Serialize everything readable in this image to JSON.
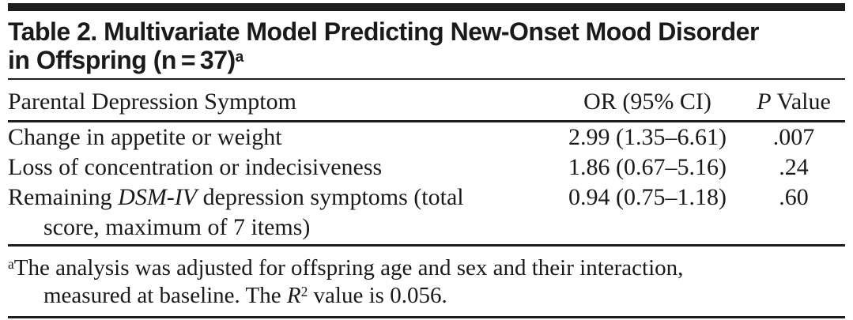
{
  "table": {
    "title": {
      "line1": "Table 2. Multivariate Model Predicting New-Onset Mood Disorder",
      "line2": "in Offspring (n = 37)",
      "footnote_marker": "a"
    },
    "columns": {
      "symptom": "Parental Depression Symptom",
      "or_ci": "OR (95% CI)",
      "p_italic": "P",
      "p_rest": " Value"
    },
    "rows": [
      {
        "label": "Change in appetite or weight",
        "or_ci": "2.99 (1.35–6.61)",
        "p_value": ".007"
      },
      {
        "label": "Loss of concentration or indecisiveness",
        "or_ci": "1.86 (0.67–5.16)",
        "p_value": ".24"
      },
      {
        "label_prefix": "Remaining ",
        "label_italic": "DSM-IV",
        "label_suffix": " depression symptoms (total",
        "label_line2": "score, maximum of 7 items)",
        "or_ci": "0.94 (0.75–1.18)",
        "p_value": ".60"
      }
    ],
    "footnote": {
      "marker": "a",
      "line1": "The analysis was adjusted for offspring age and sex and their interaction,",
      "line2_prefix": "measured at baseline. The ",
      "r_italic": "R",
      "r_superscript": "2",
      "line2_suffix": " value is 0.056."
    },
    "colors": {
      "bar": "#1e1e1e",
      "rule": "#1e1e1e",
      "text": "#1a1a1a",
      "background": "#ffffff"
    }
  }
}
